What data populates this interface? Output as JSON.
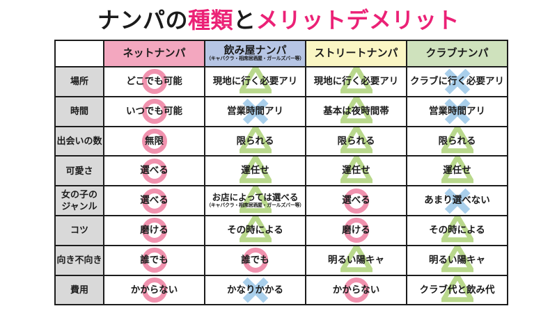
{
  "title": {
    "segments": [
      {
        "text": "ナンパの",
        "color": "#1b1b1b"
      },
      {
        "text": "種類",
        "color": "#eb2176"
      },
      {
        "text": "と",
        "color": "#1b1b1b"
      },
      {
        "text": "メリットデメリット",
        "color": "#eb2176"
      }
    ]
  },
  "colors": {
    "border": "#1c1c1c",
    "row_label_bg": "#d9d9d9",
    "title_pink": "#eb2176"
  },
  "marks": {
    "circle_color": "#f092ae",
    "triangle_color": "#b9d88c",
    "cross_color": "#a9cfeb",
    "legend": {
      "circle": "good",
      "triangle": "limited",
      "cross": "bad"
    }
  },
  "table": {
    "columns": [
      {
        "label": "ネットナンパ",
        "sub": "",
        "bg": "#f3a7bf"
      },
      {
        "label": "飲み屋ナンパ",
        "sub": "（キャバクラ・相席居酒屋・ガールズバー等）",
        "bg": "#b6c5e4"
      },
      {
        "label": "ストリートナンパ",
        "sub": "",
        "bg": "#faf6c4"
      },
      {
        "label": "クラブナンパ",
        "sub": "",
        "bg": "#cfe2bd"
      }
    ],
    "rows": [
      {
        "label": "場所",
        "cells": [
          {
            "text": "どこでも可能",
            "sub": "",
            "mark": "circle"
          },
          {
            "text": "現地に行く必要アリ",
            "sub": "",
            "mark": "triangle"
          },
          {
            "text": "現地に行く必要アリ",
            "sub": "",
            "mark": "triangle"
          },
          {
            "text": "クラブに行く必要アリ",
            "sub": "",
            "mark": "cross"
          }
        ]
      },
      {
        "label": "時間",
        "cells": [
          {
            "text": "いつでも可能",
            "sub": "",
            "mark": "circle"
          },
          {
            "text": "営業時間アリ",
            "sub": "",
            "mark": "cross"
          },
          {
            "text": "基本は夜時間帯",
            "sub": "",
            "mark": "triangle"
          },
          {
            "text": "営業時間アリ",
            "sub": "",
            "mark": "cross"
          }
        ]
      },
      {
        "label": "出会いの数",
        "cells": [
          {
            "text": "無限",
            "sub": "",
            "mark": "circle"
          },
          {
            "text": "限られる",
            "sub": "",
            "mark": "triangle"
          },
          {
            "text": "限られる",
            "sub": "",
            "mark": "triangle"
          },
          {
            "text": "限られる",
            "sub": "",
            "mark": "triangle"
          }
        ]
      },
      {
        "label": "可愛さ",
        "cells": [
          {
            "text": "選べる",
            "sub": "",
            "mark": "circle"
          },
          {
            "text": "運任せ",
            "sub": "",
            "mark": "triangle"
          },
          {
            "text": "運任せ",
            "sub": "",
            "mark": "triangle"
          },
          {
            "text": "運任せ",
            "sub": "",
            "mark": "triangle"
          }
        ]
      },
      {
        "label": "女の子の\nジャンル",
        "cells": [
          {
            "text": "選べる",
            "sub": "",
            "mark": "circle"
          },
          {
            "text": "お店によっては選べる",
            "sub": "（キャバクラ・相席居酒屋・ガールズバー等）",
            "mark": "triangle"
          },
          {
            "text": "選べる",
            "sub": "",
            "mark": "circle"
          },
          {
            "text": "あまり選べない",
            "sub": "",
            "mark": "cross"
          }
        ]
      },
      {
        "label": "コツ",
        "cells": [
          {
            "text": "磨ける",
            "sub": "",
            "mark": "circle"
          },
          {
            "text": "その時による",
            "sub": "",
            "mark": "triangle"
          },
          {
            "text": "磨ける",
            "sub": "",
            "mark": "circle"
          },
          {
            "text": "その時による",
            "sub": "",
            "mark": "triangle"
          }
        ]
      },
      {
        "label": "向き不向き",
        "cells": [
          {
            "text": "誰でも",
            "sub": "",
            "mark": "circle"
          },
          {
            "text": "誰でも",
            "sub": "",
            "mark": "circle"
          },
          {
            "text": "明るい陽キャ",
            "sub": "",
            "mark": "triangle"
          },
          {
            "text": "明るい陽キャ",
            "sub": "",
            "mark": "triangle"
          }
        ]
      },
      {
        "label": "費用",
        "cells": [
          {
            "text": "かからない",
            "sub": "",
            "mark": "circle"
          },
          {
            "text": "かなりかかる",
            "sub": "",
            "mark": "cross"
          },
          {
            "text": "かからない",
            "sub": "",
            "mark": "circle"
          },
          {
            "text": "クラブ代と飲み代",
            "sub": "",
            "mark": "triangle"
          }
        ]
      }
    ]
  }
}
